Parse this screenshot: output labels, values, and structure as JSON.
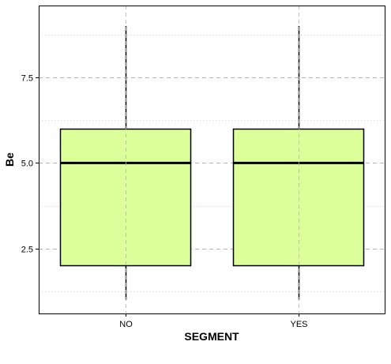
{
  "chart_data": {
    "type": "box",
    "xlabel": "SEGMENT",
    "ylabel": "Be",
    "categories": [
      "NO",
      "YES"
    ],
    "boxes": [
      {
        "category": "NO",
        "min": 1,
        "q1": 2,
        "median": 5,
        "q3": 6,
        "max": 9
      },
      {
        "category": "YES",
        "min": 1,
        "q1": 2,
        "median": 5,
        "q3": 6,
        "max": 9
      }
    ],
    "ylim": [
      0.6,
      9.6
    ],
    "yticks": [
      2.5,
      5.0,
      7.5
    ],
    "ytick_labels": [
      "2.5",
      "5.0",
      "7.5"
    ],
    "minor_yticks": [
      1.25,
      3.75,
      6.25,
      8.75
    ],
    "grid": true,
    "colors": {
      "box_fill": "#ddff99",
      "box_stroke": "#000000",
      "grid_major": "#b3b3b3",
      "grid_minor": "#d3d3d3",
      "panel_border": "#000000"
    }
  }
}
